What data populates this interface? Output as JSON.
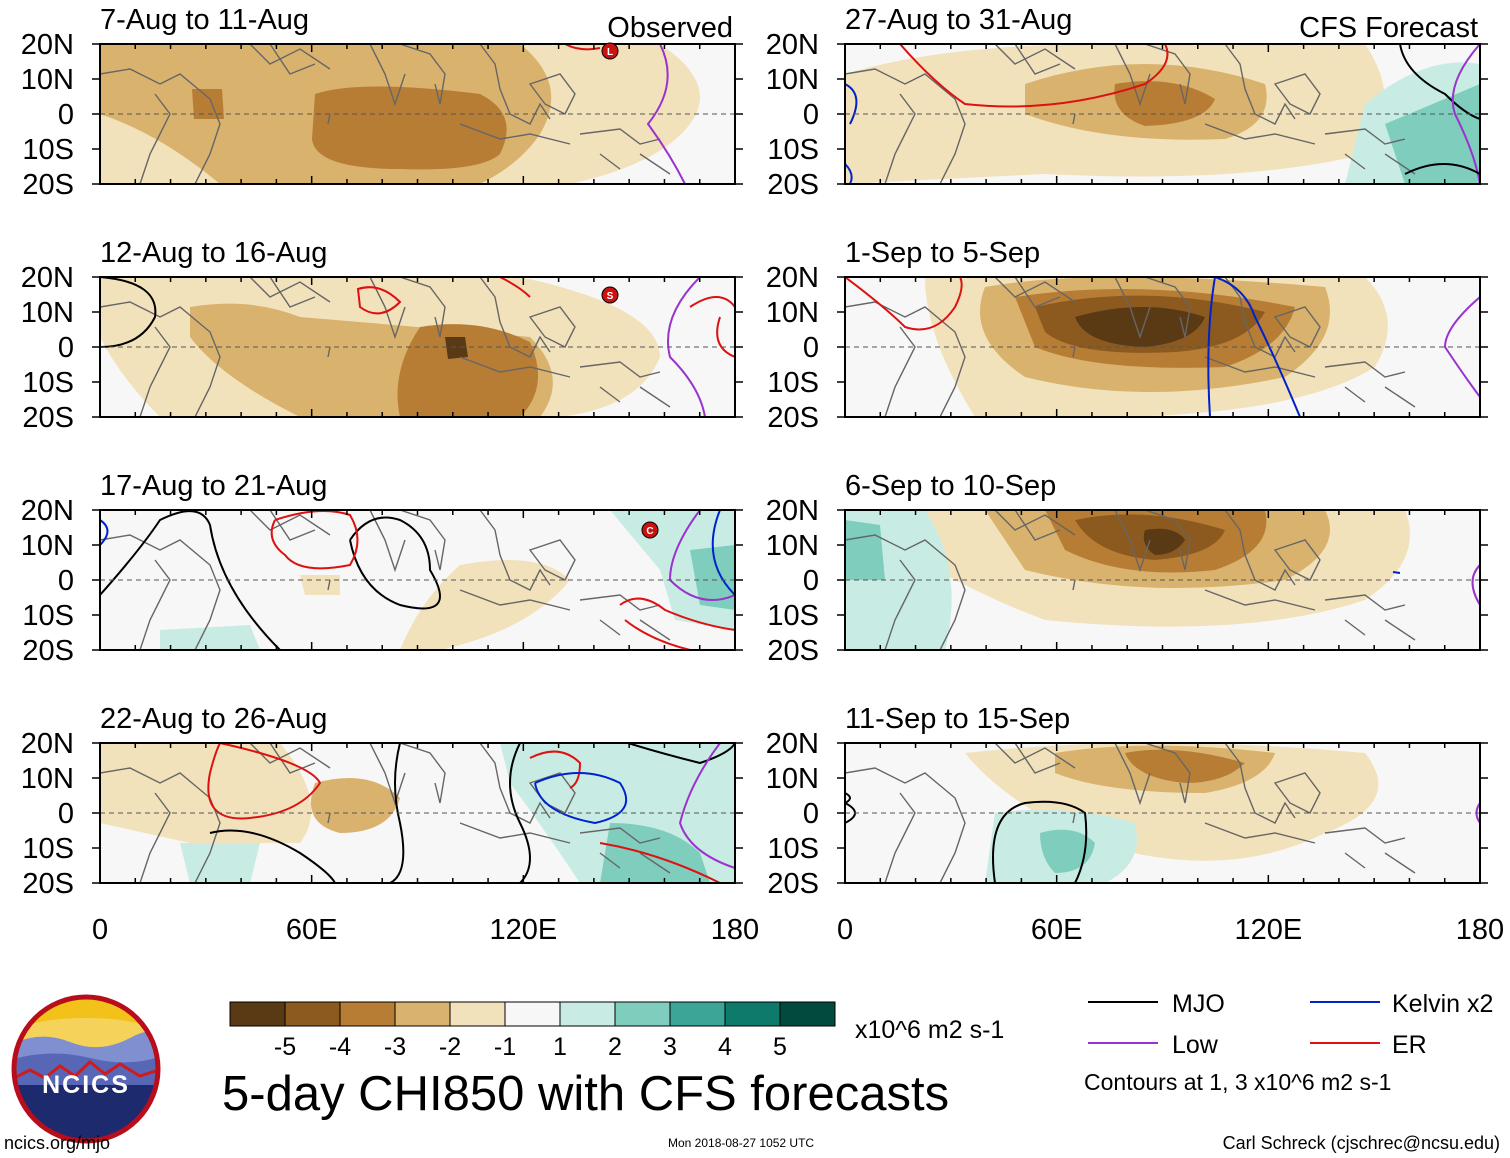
{
  "colors": {
    "mjo": "#000000",
    "low": "#9933cc",
    "kelvin": "#0022cc",
    "er": "#dd1111",
    "sup3": "#5a3a14",
    "sup2": "#8c5a1e",
    "sup1": "#b87d35",
    "sup0": "#d9b36e",
    "weak_sup": "#f2e2bc",
    "neutral": "#f7f7f7",
    "weak_enh": "#c8ece4",
    "enh1": "#7fcdbd",
    "enh2": "#3ca597",
    "enh3": "#0d7a6c",
    "enh4": "#034a3e",
    "land": "#666666",
    "logo_ring": "#b80d1a"
  },
  "panels": {
    "observed_label": "Observed",
    "forecast_label": "CFS Forecast",
    "lat_labels": [
      "20N",
      "10N",
      "0",
      "10S",
      "20S"
    ],
    "lon_labels": [
      "0",
      "60E",
      "120E",
      "180"
    ],
    "left": [
      {
        "period": "7-Aug to 11-Aug",
        "storms": [
          "L"
        ]
      },
      {
        "period": "12-Aug to 16-Aug",
        "storms": [
          "S"
        ]
      },
      {
        "period": "17-Aug to 21-Aug",
        "storms": [
          "C"
        ]
      },
      {
        "period": "22-Aug to 26-Aug",
        "storms": []
      }
    ],
    "right": [
      {
        "period": "27-Aug to 31-Aug"
      },
      {
        "period": "1-Sep to 5-Sep"
      },
      {
        "period": "6-Sep to 10-Sep"
      },
      {
        "period": "11-Sep to 15-Sep"
      }
    ]
  },
  "colorbar": {
    "ticks": [
      "-5",
      "-4",
      "-3",
      "-2",
      "-1",
      "1",
      "2",
      "3",
      "4",
      "5"
    ],
    "units": "x10^6 m2 s-1"
  },
  "title": "5-day CHI850 with CFS forecasts",
  "legend": {
    "mjo": "MJO",
    "low": "Low",
    "kelvin": "Kelvin x2",
    "er": "ER",
    "note": "Contours at 1, 3 x10^6 m2 s-1"
  },
  "logo": {
    "text": "NCICS"
  },
  "footer": {
    "url": "ncics.org/mjo",
    "timestamp": "Mon 2018-08-27 1052 UTC",
    "credit": "Carl Schreck (cjschrec@ncsu.edu)"
  }
}
